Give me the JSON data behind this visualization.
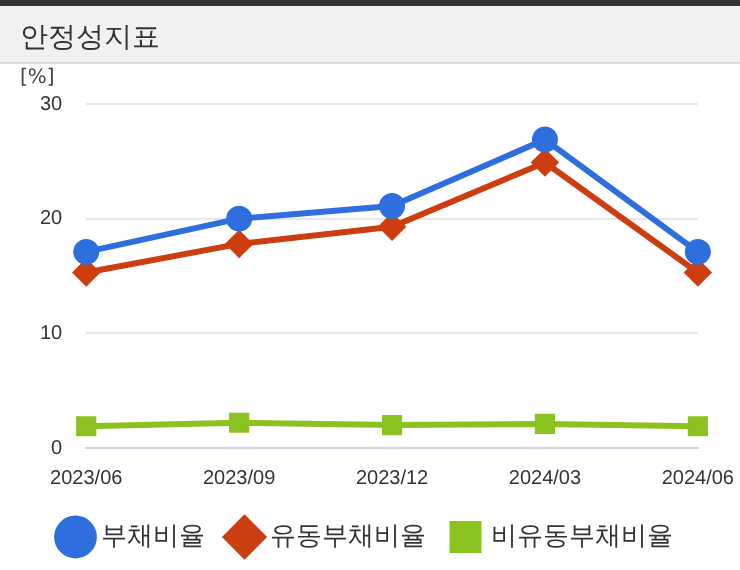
{
  "chart_data": {
    "type": "line",
    "title": "안정성지표",
    "ylabel": "[%]",
    "categories": [
      "2023/06",
      "2023/09",
      "2023/12",
      "2024/03",
      "2024/06"
    ],
    "series": [
      {
        "name": "부채비율",
        "color": "#2e6fdd",
        "marker": "circle",
        "values": [
          17.1,
          20,
          21.1,
          26.9,
          17.1
        ]
      },
      {
        "name": "유동부채비율",
        "color": "#cc3d10",
        "marker": "diamond",
        "values": [
          15.3,
          17.8,
          19.3,
          24.9,
          15.3
        ]
      },
      {
        "name": "비유동부채비율",
        "color": "#8cc21f",
        "marker": "square",
        "values": [
          1.9,
          2.2,
          2.0,
          2.1,
          1.9
        ]
      }
    ],
    "ylim": [
      0,
      30
    ],
    "yticks": [
      0,
      10,
      20,
      30
    ],
    "grid": "y",
    "legend": "bottom",
    "line_style": "solid"
  }
}
